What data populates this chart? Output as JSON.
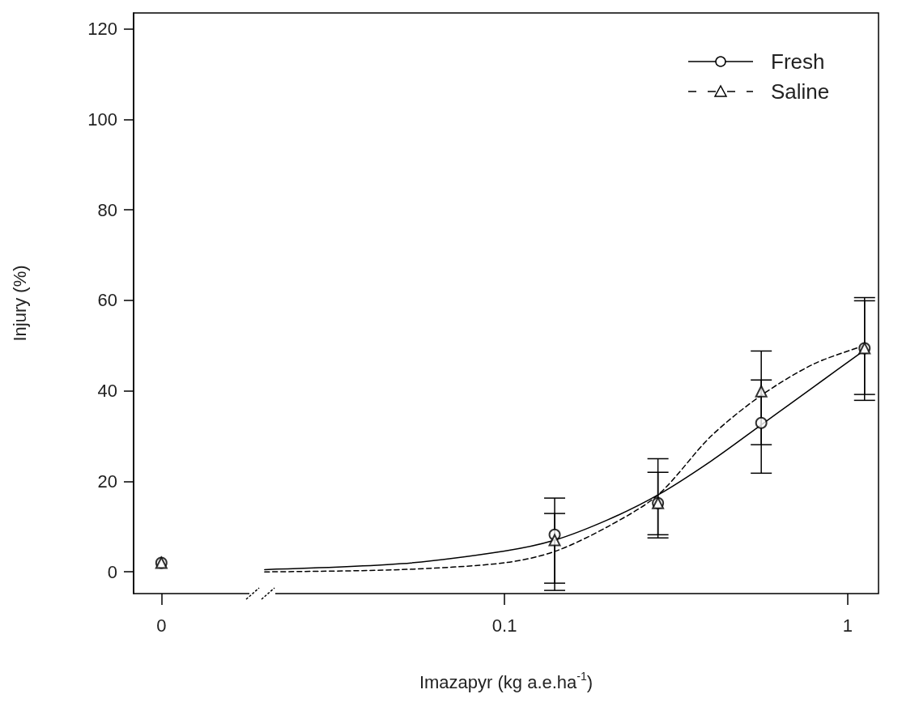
{
  "chart_data": {
    "type": "scatter",
    "xlabel": "Imazapyr (kg a.e.ha$^{-1}$)",
    "ylabel": "Injury (%)",
    "log": "x",
    "xlim": [
      0.0083,
      1.23
    ],
    "xticks": [
      {
        "value": 0.01,
        "label": "0"
      },
      0.1,
      1
    ],
    "ylim": [
      -4.8,
      123.5
    ],
    "yticks": [
      0,
      20,
      40,
      60,
      80,
      100,
      120
    ],
    "grid": false,
    "legend": "top right",
    "series": [
      {
        "name": "Fresh",
        "color": "#000000",
        "marker": "circle",
        "line_style": "solid",
        "x": [
          0.01,
          0.14,
          0.28,
          0.56,
          1.12
        ],
        "values": [
          2.0,
          8.2,
          15.2,
          32.9,
          49.4
        ],
        "errors": [
          null,
          [
            -4.1,
            16.3
          ],
          [
            8.2,
            22.0
          ],
          [
            21.8,
            42.4
          ],
          [
            37.9,
            60.6
          ]
        ]
      },
      {
        "name": "Saline",
        "color": "#000000",
        "marker": "triangle",
        "line_style": "dashed",
        "x": [
          0.01,
          0.14,
          0.28,
          0.56,
          1.12
        ],
        "values": [
          2.0,
          7.0,
          15.2,
          39.9,
          49.4
        ],
        "errors": [
          null,
          [
            -2.5,
            12.9
          ],
          [
            7.5,
            25.0
          ],
          [
            28.1,
            48.8
          ],
          [
            39.2,
            59.9
          ]
        ]
      },
      {
        "type": "line",
        "color": "#000000",
        "marker": "none",
        "line_style": "solid",
        "x": [
          0.02,
          0.05,
          0.1,
          0.14,
          0.2,
          0.28,
          0.4,
          0.56,
          0.8,
          1.12
        ],
        "values": [
          0.5,
          1.8,
          4.6,
          7.0,
          11.5,
          17.0,
          24.5,
          32.5,
          41.0,
          49.0
        ]
      },
      {
        "type": "line",
        "color": "#000000",
        "marker": "none",
        "line_style": "dashed",
        "x": [
          0.02,
          0.05,
          0.1,
          0.14,
          0.2,
          0.28,
          0.4,
          0.56,
          0.8,
          1.12
        ],
        "values": [
          0.0,
          0.5,
          2.0,
          4.5,
          10.0,
          17.0,
          30.0,
          39.0,
          46.0,
          50.0
        ]
      }
    ]
  }
}
